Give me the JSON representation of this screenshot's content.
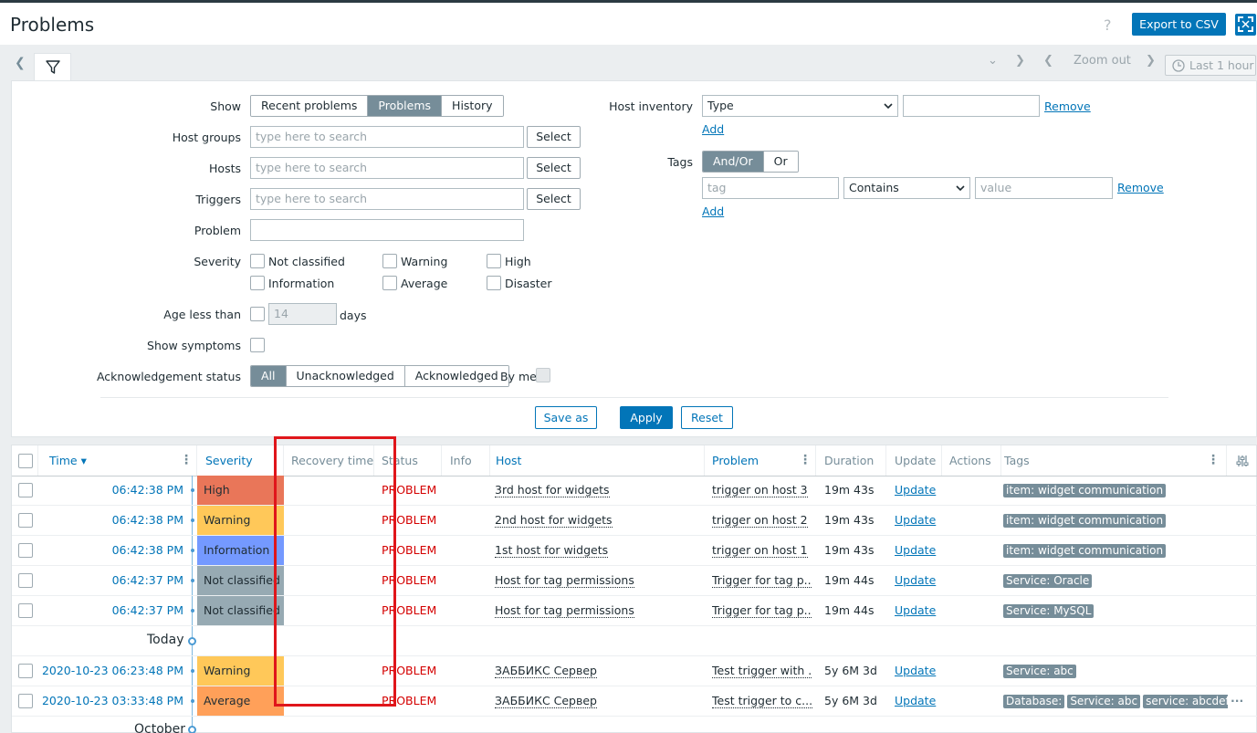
{
  "header": {
    "title": "Problems",
    "help": "?",
    "export_label": "Export to CSV"
  },
  "tabbar": {
    "zoom_out": "Zoom out",
    "last_hour": "Last 1 hour"
  },
  "filter": {
    "show_label": "Show",
    "show_options": [
      "Recent problems",
      "Problems",
      "History"
    ],
    "show_selected": "Problems",
    "host_groups_label": "Host groups",
    "hosts_label": "Hosts",
    "triggers_label": "Triggers",
    "search_placeholder": "type here to search",
    "select_label": "Select",
    "problem_label": "Problem",
    "severity_label": "Severity",
    "severities": [
      "Not classified",
      "Warning",
      "High",
      "Information",
      "Average",
      "Disaster"
    ],
    "age_label": "Age less than",
    "age_value": "14",
    "age_unit": "days",
    "symptoms_label": "Show symptoms",
    "ack_label": "Acknowledgement status",
    "ack_options": [
      "All",
      "Unacknowledged",
      "Acknowledged"
    ],
    "ack_selected": "All",
    "by_me_label": "By me",
    "inventory_label": "Host inventory",
    "inventory_type": "Type",
    "remove_label": "Remove",
    "add_label": "Add",
    "tags_label": "Tags",
    "tags_options": [
      "And/Or",
      "Or"
    ],
    "tags_selected": "And/Or",
    "tag_placeholder": "tag",
    "tag_operator": "Contains",
    "value_placeholder": "value",
    "save_as_label": "Save as",
    "apply_label": "Apply",
    "reset_label": "Reset"
  },
  "table": {
    "columns": [
      "Time",
      "Severity",
      "Recovery time",
      "Status",
      "Info",
      "Host",
      "Problem",
      "Duration",
      "Update",
      "Actions",
      "Tags"
    ],
    "sort_indicator": "▾",
    "rows": [
      {
        "time": "06:42:38 PM",
        "severity": "High",
        "sev_color": "#e97659",
        "status": "PROBLEM",
        "host": "3rd host for widgets",
        "problem": "trigger on host 3",
        "duration": "19m 43s",
        "update": "Update",
        "tags": [
          "item: widget communication"
        ]
      },
      {
        "time": "06:42:38 PM",
        "severity": "Warning",
        "sev_color": "#ffc859",
        "status": "PROBLEM",
        "host": "2nd host for widgets",
        "problem": "trigger on host 2",
        "duration": "19m 43s",
        "update": "Update",
        "tags": [
          "item: widget communication"
        ]
      },
      {
        "time": "06:42:38 PM",
        "severity": "Information",
        "sev_color": "#7499ff",
        "status": "PROBLEM",
        "host": "1st host for widgets",
        "problem": "trigger on host 1",
        "duration": "19m 43s",
        "update": "Update",
        "tags": [
          "item: widget communication"
        ]
      },
      {
        "time": "06:42:37 PM",
        "severity": "Not classified",
        "sev_color": "#97aab3",
        "status": "PROBLEM",
        "host": "Host for tag permissions",
        "problem": "Trigger for tag p...",
        "duration": "19m 44s",
        "update": "Update",
        "tags": [
          "Service: Oracle"
        ]
      },
      {
        "time": "06:42:37 PM",
        "severity": "Not classified",
        "sev_color": "#97aab3",
        "status": "PROBLEM",
        "host": "Host for tag permissions",
        "problem": "Trigger for tag p...",
        "duration": "19m 44s",
        "update": "Update",
        "tags": [
          "Service: MySQL"
        ]
      }
    ],
    "section_today": "Today",
    "rows2": [
      {
        "time": "2020-10-23 06:23:48 PM",
        "severity": "Warning",
        "sev_color": "#ffc859",
        "status": "PROBLEM",
        "host": "ЗАББИКС Сервер",
        "problem": "Test trigger with ...",
        "duration": "5y 6M 3d",
        "update": "Update",
        "tags": [
          "Service: abc"
        ]
      },
      {
        "time": "2020-10-23 03:33:48 PM",
        "severity": "Average",
        "sev_color": "#ffa059",
        "status": "PROBLEM",
        "host": "ЗАББИКС Сервер",
        "problem": "Test trigger to c...",
        "duration": "5y 6M 3d",
        "update": "Update",
        "tags": [
          "Database:",
          "Service: abc",
          "service: abcdef"
        ]
      }
    ],
    "section_october": "October",
    "more": "···"
  }
}
